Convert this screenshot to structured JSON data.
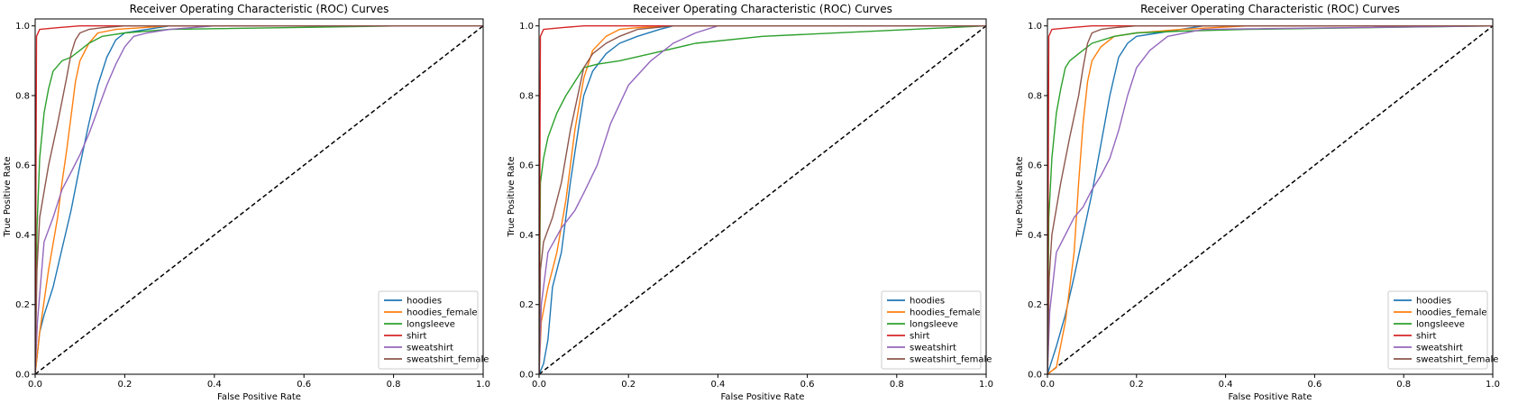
{
  "chart_data": [
    {
      "type": "line",
      "title": "Receiver Operating Characteristic (ROC) Curves",
      "xlabel": "False Positive Rate",
      "ylabel": "True Positive Rate",
      "xlim": [
        0.0,
        1.0
      ],
      "ylim": [
        0.0,
        1.02
      ],
      "xticks": [
        "0.0",
        "0.2",
        "0.4",
        "0.6",
        "0.8",
        "1.0"
      ],
      "yticks": [
        "0.0",
        "0.2",
        "0.4",
        "0.6",
        "0.8",
        "1.0"
      ],
      "grid": false,
      "legend_position": "lower-right",
      "diagonal": {
        "x": [
          0,
          1
        ],
        "y": [
          0,
          1
        ],
        "style": "dashed",
        "color": "#000000"
      },
      "series": [
        {
          "name": "hoodies",
          "color": "#1f77b4",
          "x": [
            0,
            0.01,
            0.02,
            0.04,
            0.06,
            0.08,
            0.1,
            0.12,
            0.14,
            0.16,
            0.18,
            0.2,
            0.25,
            0.3,
            1.0
          ],
          "y": [
            0,
            0.12,
            0.17,
            0.25,
            0.36,
            0.47,
            0.6,
            0.72,
            0.83,
            0.91,
            0.96,
            0.98,
            0.99,
            1.0,
            1.0
          ]
        },
        {
          "name": "hoodies_female",
          "color": "#ff7f0e",
          "x": [
            0,
            0.01,
            0.03,
            0.05,
            0.06,
            0.07,
            0.08,
            0.09,
            0.1,
            0.12,
            0.14,
            0.18,
            0.3,
            1.0
          ],
          "y": [
            0,
            0.12,
            0.3,
            0.45,
            0.55,
            0.64,
            0.74,
            0.84,
            0.9,
            0.95,
            0.98,
            0.99,
            1.0,
            1.0
          ]
        },
        {
          "name": "longsleeve",
          "color": "#2ca02c",
          "x": [
            0,
            0.004,
            0.01,
            0.02,
            0.03,
            0.04,
            0.06,
            0.08,
            0.1,
            0.12,
            0.15,
            0.2,
            0.3,
            0.82,
            1.0
          ],
          "y": [
            0,
            0.42,
            0.62,
            0.75,
            0.82,
            0.87,
            0.9,
            0.91,
            0.93,
            0.95,
            0.97,
            0.98,
            0.99,
            1.0,
            1.0
          ]
        },
        {
          "name": "shirt",
          "color": "#d62728",
          "x": [
            0,
            0.003,
            0.01,
            0.05,
            0.1,
            1.0
          ],
          "y": [
            0,
            0.97,
            0.99,
            0.995,
            1.0,
            1.0
          ]
        },
        {
          "name": "sweatshirt",
          "color": "#9467bd",
          "x": [
            0,
            0.005,
            0.02,
            0.04,
            0.06,
            0.08,
            0.1,
            0.12,
            0.14,
            0.16,
            0.18,
            0.2,
            0.22,
            0.25,
            0.3,
            0.4,
            1.0
          ],
          "y": [
            0,
            0.15,
            0.38,
            0.45,
            0.53,
            0.58,
            0.63,
            0.69,
            0.76,
            0.83,
            0.89,
            0.94,
            0.97,
            0.98,
            0.99,
            1.0,
            1.0
          ]
        },
        {
          "name": "sweatshirt_female",
          "color": "#8c564b",
          "x": [
            0,
            0.004,
            0.01,
            0.03,
            0.05,
            0.07,
            0.08,
            0.09,
            0.1,
            0.12,
            0.15,
            0.2,
            1.0
          ],
          "y": [
            0,
            0.3,
            0.45,
            0.6,
            0.72,
            0.85,
            0.92,
            0.96,
            0.98,
            0.99,
            0.995,
            1.0,
            1.0
          ]
        }
      ]
    },
    {
      "type": "line",
      "title": "Receiver Operating Characteristic (ROC) Curves",
      "xlabel": "False Positive Rate",
      "ylabel": "True Positive Rate",
      "xlim": [
        0.0,
        1.0
      ],
      "ylim": [
        0.0,
        1.02
      ],
      "xticks": [
        "0.0",
        "0.2",
        "0.4",
        "0.6",
        "0.8",
        "1.0"
      ],
      "yticks": [
        "0.0",
        "0.2",
        "0.4",
        "0.6",
        "0.8",
        "1.0"
      ],
      "grid": false,
      "legend_position": "lower-right",
      "diagonal": {
        "x": [
          0,
          1
        ],
        "y": [
          0,
          1
        ],
        "style": "dashed",
        "color": "#000000"
      },
      "series": [
        {
          "name": "hoodies",
          "color": "#1f77b4",
          "x": [
            0,
            0.01,
            0.02,
            0.03,
            0.05,
            0.07,
            0.09,
            0.1,
            0.12,
            0.15,
            0.18,
            0.22,
            0.27,
            0.3,
            1.0
          ],
          "y": [
            0,
            0.03,
            0.1,
            0.25,
            0.35,
            0.55,
            0.72,
            0.8,
            0.87,
            0.92,
            0.95,
            0.97,
            0.99,
            1.0,
            1.0
          ]
        },
        {
          "name": "hoodies_female",
          "color": "#ff7f0e",
          "x": [
            0,
            0.005,
            0.02,
            0.04,
            0.06,
            0.08,
            0.1,
            0.12,
            0.15,
            0.18,
            0.22,
            0.3,
            1.0
          ],
          "y": [
            0,
            0.15,
            0.25,
            0.35,
            0.5,
            0.7,
            0.85,
            0.93,
            0.97,
            0.99,
            0.995,
            1.0,
            1.0
          ]
        },
        {
          "name": "longsleeve",
          "color": "#2ca02c",
          "x": [
            0,
            0.003,
            0.01,
            0.02,
            0.04,
            0.06,
            0.08,
            0.1,
            0.13,
            0.18,
            0.25,
            0.35,
            0.5,
            1.0
          ],
          "y": [
            0,
            0.55,
            0.62,
            0.68,
            0.75,
            0.8,
            0.84,
            0.88,
            0.89,
            0.9,
            0.92,
            0.95,
            0.97,
            1.0
          ]
        },
        {
          "name": "shirt",
          "color": "#d62728",
          "x": [
            0,
            0.003,
            0.01,
            0.05,
            0.1,
            1.0
          ],
          "y": [
            0,
            0.97,
            0.99,
            0.995,
            1.0,
            1.0
          ]
        },
        {
          "name": "sweatshirt",
          "color": "#9467bd",
          "x": [
            0,
            0.005,
            0.02,
            0.05,
            0.08,
            0.1,
            0.13,
            0.16,
            0.2,
            0.25,
            0.3,
            0.35,
            0.4,
            1.0
          ],
          "y": [
            0,
            0.2,
            0.35,
            0.42,
            0.47,
            0.52,
            0.6,
            0.72,
            0.83,
            0.9,
            0.95,
            0.98,
            1.0,
            1.0
          ]
        },
        {
          "name": "sweatshirt_female",
          "color": "#8c564b",
          "x": [
            0,
            0.003,
            0.01,
            0.03,
            0.05,
            0.07,
            0.09,
            0.1,
            0.12,
            0.15,
            0.18,
            0.22,
            0.3,
            1.0
          ],
          "y": [
            0,
            0.3,
            0.38,
            0.45,
            0.55,
            0.7,
            0.82,
            0.88,
            0.92,
            0.95,
            0.97,
            0.99,
            1.0,
            1.0
          ]
        }
      ]
    },
    {
      "type": "line",
      "title": "Receiver Operating Characteristic (ROC) Curves",
      "xlabel": "False Positive Rate",
      "ylabel": "True Positive Rate",
      "xlim": [
        0.0,
        1.0
      ],
      "ylim": [
        0.0,
        1.02
      ],
      "xticks": [
        "0.0",
        "0.2",
        "0.4",
        "0.6",
        "0.8",
        "1.0"
      ],
      "yticks": [
        "0.0",
        "0.2",
        "0.4",
        "0.6",
        "0.8",
        "1.0"
      ],
      "grid": false,
      "legend_position": "lower-right",
      "diagonal": {
        "x": [
          0,
          1
        ],
        "y": [
          0,
          1
        ],
        "style": "dashed",
        "color": "#000000"
      },
      "series": [
        {
          "name": "hoodies",
          "color": "#1f77b4",
          "x": [
            0,
            0.02,
            0.04,
            0.06,
            0.08,
            0.1,
            0.12,
            0.14,
            0.16,
            0.18,
            0.2,
            0.25,
            0.3,
            0.35,
            1.0
          ],
          "y": [
            0,
            0.08,
            0.17,
            0.28,
            0.4,
            0.52,
            0.66,
            0.8,
            0.91,
            0.95,
            0.97,
            0.98,
            0.99,
            1.0,
            1.0
          ]
        },
        {
          "name": "hoodies_female",
          "color": "#ff7f0e",
          "x": [
            0,
            0.02,
            0.04,
            0.06,
            0.07,
            0.08,
            0.09,
            0.1,
            0.12,
            0.15,
            0.2,
            0.3,
            0.45,
            1.0
          ],
          "y": [
            0,
            0.02,
            0.15,
            0.35,
            0.55,
            0.72,
            0.84,
            0.9,
            0.94,
            0.97,
            0.98,
            0.99,
            1.0,
            1.0
          ]
        },
        {
          "name": "longsleeve",
          "color": "#2ca02c",
          "x": [
            0,
            0.003,
            0.01,
            0.02,
            0.03,
            0.04,
            0.05,
            0.07,
            0.1,
            0.15,
            0.2,
            0.3,
            0.45,
            1.0
          ],
          "y": [
            0,
            0.45,
            0.62,
            0.75,
            0.82,
            0.88,
            0.9,
            0.92,
            0.95,
            0.97,
            0.98,
            0.985,
            0.99,
            1.0
          ]
        },
        {
          "name": "shirt",
          "color": "#d62728",
          "x": [
            0,
            0.003,
            0.01,
            0.05,
            0.1,
            1.0
          ],
          "y": [
            0,
            0.97,
            0.99,
            0.995,
            1.0,
            1.0
          ]
        },
        {
          "name": "sweatshirt",
          "color": "#9467bd",
          "x": [
            0,
            0.005,
            0.02,
            0.04,
            0.06,
            0.08,
            0.1,
            0.12,
            0.14,
            0.16,
            0.18,
            0.2,
            0.23,
            0.27,
            0.35,
            1.0
          ],
          "y": [
            0,
            0.18,
            0.35,
            0.4,
            0.45,
            0.48,
            0.53,
            0.57,
            0.62,
            0.7,
            0.8,
            0.88,
            0.93,
            0.97,
            0.99,
            1.0
          ]
        },
        {
          "name": "sweatshirt_female",
          "color": "#8c564b",
          "x": [
            0,
            0.004,
            0.01,
            0.03,
            0.05,
            0.07,
            0.08,
            0.09,
            0.1,
            0.12,
            0.15,
            0.2,
            1.0
          ],
          "y": [
            0,
            0.28,
            0.4,
            0.55,
            0.68,
            0.8,
            0.88,
            0.95,
            0.98,
            0.99,
            0.995,
            1.0,
            1.0
          ]
        }
      ]
    }
  ]
}
